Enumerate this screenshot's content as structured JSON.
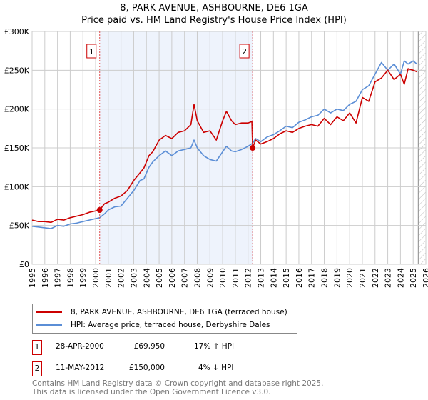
{
  "chart_data": {
    "type": "line",
    "title": "8, PARK AVENUE, ASHBOURNE, DE6 1GA",
    "subtitle": "Price paid vs. HM Land Registry's House Price Index (HPI)",
    "xlim": [
      1995,
      2026
    ],
    "ylim": [
      0,
      300000
    ],
    "y_ticks": [
      0,
      50000,
      100000,
      150000,
      200000,
      250000,
      300000
    ],
    "y_tick_labels": [
      "£0",
      "£50K",
      "£100K",
      "£150K",
      "£200K",
      "£250K",
      "£300K"
    ],
    "x_tick_labels": [
      "1995",
      "1996",
      "1997",
      "1998",
      "1999",
      "2000",
      "2001",
      "2002",
      "2003",
      "2004",
      "2005",
      "2006",
      "2007",
      "2008",
      "2009",
      "2010",
      "2011",
      "2012",
      "2013",
      "2014",
      "2015",
      "2016",
      "2017",
      "2018",
      "2019",
      "2020",
      "2021",
      "2022",
      "2023",
      "2024",
      "2025",
      "2026"
    ],
    "grid": true,
    "shaded_range": [
      2000.32,
      2012.36
    ],
    "forecast_hatch_from": 2025.4,
    "series": [
      {
        "name": "8, PARK AVENUE, ASHBOURNE, DE6 1GA (terraced house)",
        "color": "#cc0000",
        "x": [
          1995,
          1995.5,
          1996,
          1996.5,
          1997,
          1997.5,
          1998,
          1998.5,
          1999,
          1999.5,
          2000.32,
          2000.7,
          2001,
          2001.5,
          2002,
          2002.5,
          2003,
          2003.5,
          2003.8,
          2004.2,
          2004.5,
          2005,
          2005.5,
          2006,
          2006.5,
          2007,
          2007.5,
          2007.75,
          2008,
          2008.5,
          2009,
          2009.5,
          2010,
          2010.3,
          2010.7,
          2011,
          2011.5,
          2012,
          2012.3,
          2012.36,
          2012.6,
          2013,
          2013.5,
          2014,
          2014.5,
          2015,
          2015.5,
          2016,
          2016.5,
          2017,
          2017.5,
          2018,
          2018.5,
          2019,
          2019.5,
          2020,
          2020.5,
          2021,
          2021.5,
          2022,
          2022.5,
          2023,
          2023.5,
          2024,
          2024.3,
          2024.6,
          2025,
          2025.3
        ],
        "y": [
          57000,
          55000,
          55000,
          54000,
          58000,
          57000,
          60000,
          62000,
          64000,
          67000,
          69950,
          78000,
          80000,
          85000,
          88000,
          95000,
          108000,
          118000,
          124000,
          140000,
          145000,
          160000,
          166000,
          162000,
          170000,
          172000,
          180000,
          206000,
          185000,
          170000,
          172000,
          160000,
          185000,
          197000,
          185000,
          180000,
          182000,
          182000,
          184000,
          150000,
          160000,
          155000,
          158000,
          162000,
          168000,
          172000,
          170000,
          175000,
          178000,
          180000,
          178000,
          188000,
          180000,
          190000,
          185000,
          195000,
          182000,
          215000,
          210000,
          235000,
          240000,
          250000,
          238000,
          245000,
          232000,
          252000,
          250000,
          248000
        ]
      },
      {
        "name": "HPI: Average price, terraced house, Derbyshire Dales",
        "color": "#5b8ed6",
        "x": [
          1995,
          1995.5,
          1996,
          1996.5,
          1997,
          1997.5,
          1998,
          1998.5,
          1999,
          1999.5,
          2000.32,
          2000.7,
          2001,
          2001.5,
          2002,
          2002.5,
          2003,
          2003.5,
          2003.8,
          2004.2,
          2004.5,
          2005,
          2005.5,
          2006,
          2006.5,
          2007,
          2007.5,
          2007.75,
          2008,
          2008.5,
          2009,
          2009.5,
          2010,
          2010.3,
          2010.7,
          2011,
          2011.5,
          2012,
          2012.36,
          2012.6,
          2013,
          2013.5,
          2014,
          2014.5,
          2015,
          2015.5,
          2016,
          2016.5,
          2017,
          2017.5,
          2018,
          2018.5,
          2019,
          2019.5,
          2020,
          2020.5,
          2021,
          2021.5,
          2022,
          2022.5,
          2023,
          2023.5,
          2024,
          2024.3,
          2024.6,
          2025,
          2025.3
        ],
        "y": [
          49000,
          48000,
          47000,
          46000,
          50000,
          49000,
          52000,
          53000,
          55000,
          57000,
          60000,
          65000,
          70000,
          74000,
          75000,
          85000,
          95000,
          108000,
          110000,
          125000,
          132000,
          140000,
          146000,
          140000,
          146000,
          148000,
          150000,
          160000,
          150000,
          140000,
          135000,
          133000,
          145000,
          152000,
          146000,
          145000,
          148000,
          152000,
          156000,
          162000,
          158000,
          164000,
          167000,
          172000,
          178000,
          176000,
          183000,
          186000,
          190000,
          192000,
          200000,
          195000,
          200000,
          198000,
          206000,
          210000,
          225000,
          230000,
          245000,
          260000,
          250000,
          258000,
          245000,
          262000,
          258000,
          262000,
          258000
        ]
      }
    ],
    "annotations": [
      {
        "label": "1",
        "x": 2000.32,
        "y": 69950
      },
      {
        "label": "2",
        "x": 2012.36,
        "y": 150000
      }
    ]
  },
  "legend": {
    "items": [
      {
        "label": "8, PARK AVENUE, ASHBOURNE, DE6 1GA (terraced house)",
        "color": "#cc0000"
      },
      {
        "label": "HPI: Average price, terraced house, Derbyshire Dales",
        "color": "#5b8ed6"
      }
    ]
  },
  "transactions": [
    {
      "num": "1",
      "date": "28-APR-2000",
      "price": "£69,950",
      "hpi": "17% ↑ HPI"
    },
    {
      "num": "2",
      "date": "11-MAY-2012",
      "price": "£150,000",
      "hpi": "4% ↓ HPI"
    }
  ],
  "footer": {
    "line1": "Contains HM Land Registry data © Crown copyright and database right 2025.",
    "line2": "This data is licensed under the Open Government Licence v3.0."
  }
}
